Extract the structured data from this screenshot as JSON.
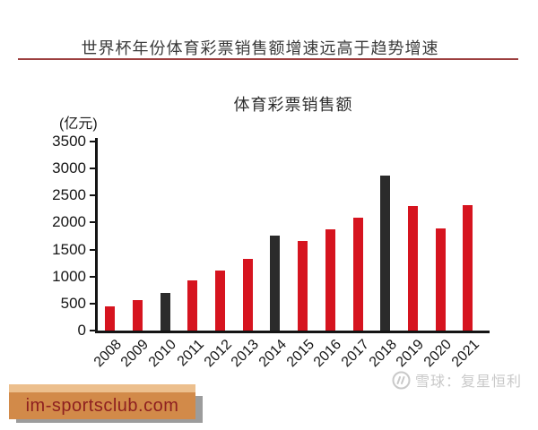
{
  "page": {
    "header_title": "世界杯年份体育彩票销售额增速远高于趋势增速",
    "watermark": {
      "logo": "xueqiu-circle-logo",
      "source_label": "雪球：复星恒利"
    },
    "banner": {
      "text": "im-sportsclub.com"
    }
  },
  "chart_data": {
    "type": "bar",
    "title": "体育彩票销售额",
    "unit_label": "(亿元)",
    "xlabel": "",
    "ylabel": "(亿元)",
    "categories": [
      "2008",
      "2009",
      "2010",
      "2011",
      "2012",
      "2013",
      "2014",
      "2015",
      "2016",
      "2017",
      "2018",
      "2019",
      "2020",
      "2021"
    ],
    "values": [
      456,
      564,
      693,
      931,
      1110,
      1328,
      1764,
      1664,
      1881,
      2096,
      2869,
      2308,
      1895,
      2328
    ],
    "highlight_categories": [
      "2010",
      "2014",
      "2018"
    ],
    "highlight_note": "World Cup years shown in black, other years in red",
    "colors": {
      "default": "#d6141f",
      "highlight": "#2b2b2b"
    },
    "ylim": [
      0,
      3500
    ],
    "yticks": [
      0,
      500,
      1000,
      1500,
      2000,
      2500,
      3000,
      3500
    ],
    "grid": false,
    "legend": "none",
    "xtick_rotation_deg": 45
  }
}
